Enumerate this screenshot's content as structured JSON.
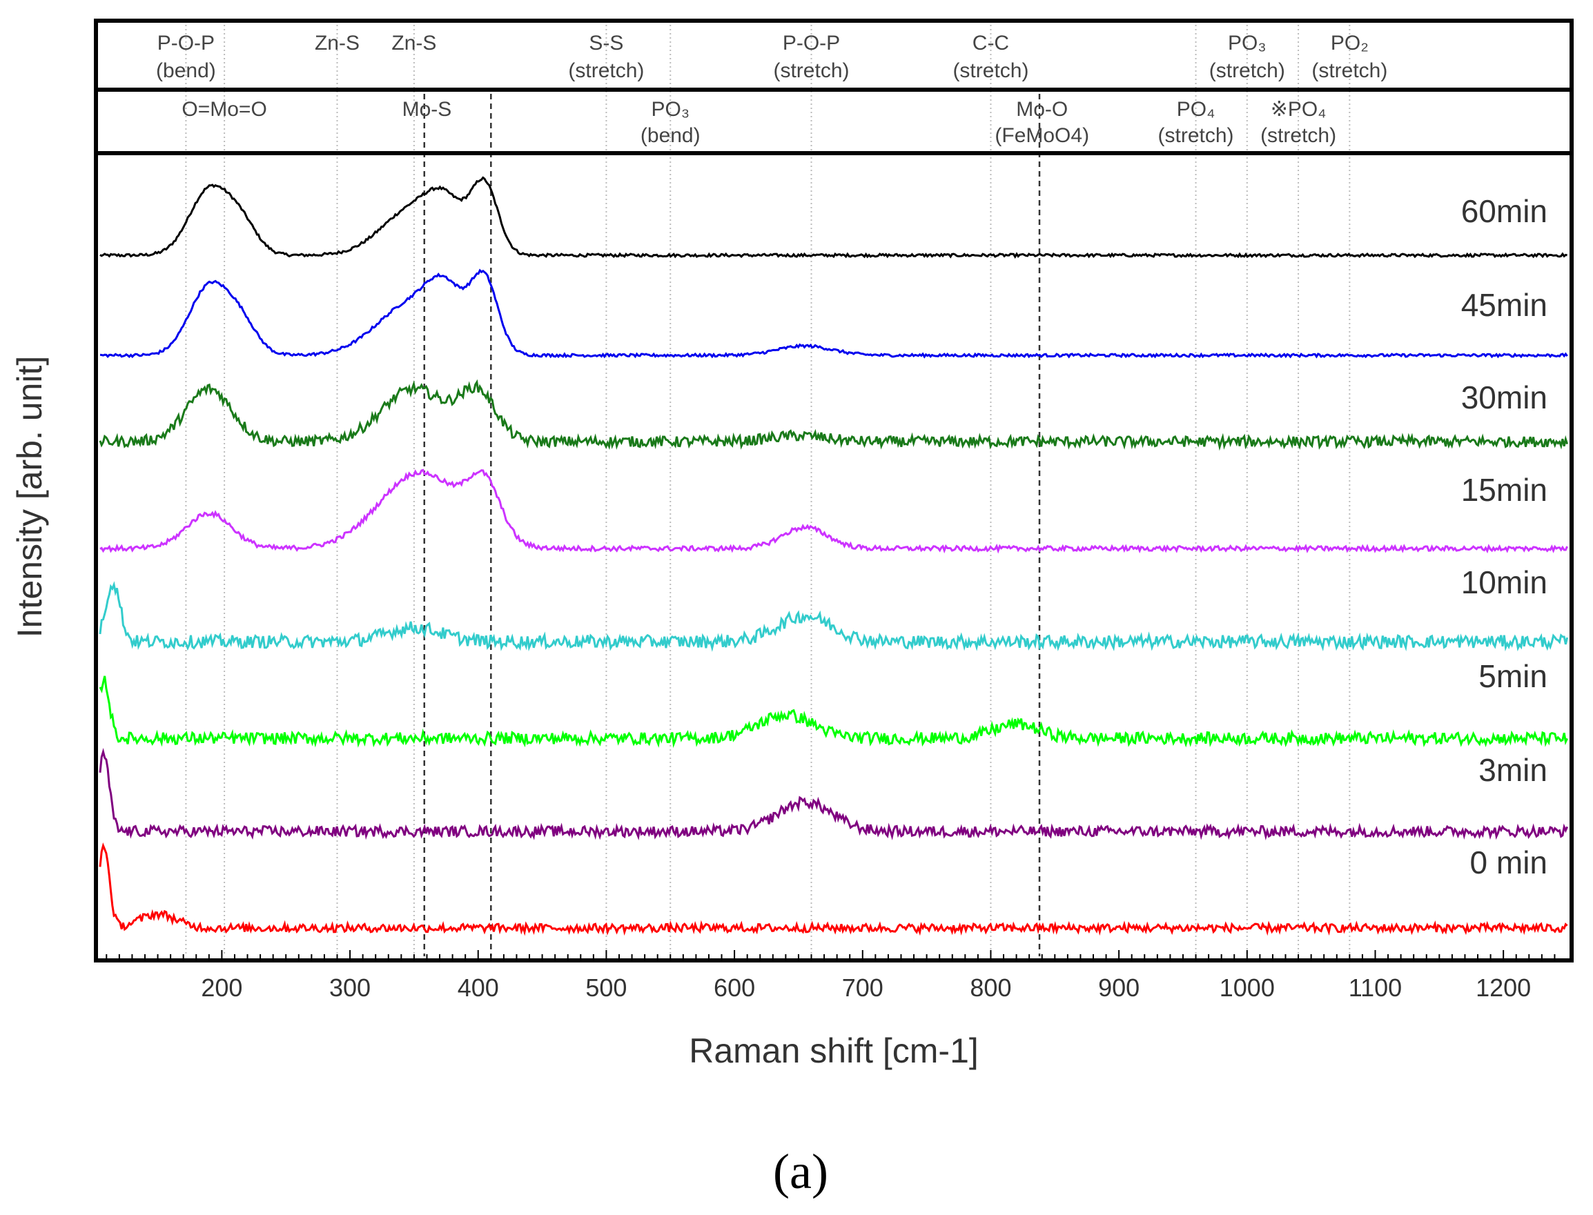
{
  "chart_data": {
    "type": "line",
    "title": "",
    "xlabel": "Raman shift [cm-1]",
    "ylabel": "Intensity [arb. unit]",
    "xlim": [
      105,
      1250
    ],
    "x_ticks": [
      200,
      300,
      400,
      500,
      600,
      700,
      800,
      900,
      1000,
      1100,
      1200
    ],
    "grid": false,
    "legend": "right-inline",
    "panel_label": "(a)",
    "series": [
      {
        "name": "60min",
        "color": "#000000",
        "noise": 0.012,
        "peaks": [
          [
            190,
            0.55,
            22
          ],
          [
            215,
            0.25,
            18
          ],
          [
            350,
            0.4,
            35
          ],
          [
            375,
            0.3,
            20
          ],
          [
            405,
            0.58,
            15
          ]
        ]
      },
      {
        "name": "45min",
        "color": "#0000ee",
        "noise": 0.012,
        "peaks": [
          [
            190,
            0.58,
            22
          ],
          [
            215,
            0.25,
            18
          ],
          [
            350,
            0.45,
            40
          ],
          [
            375,
            0.35,
            20
          ],
          [
            405,
            0.6,
            15
          ],
          [
            655,
            0.08,
            30
          ]
        ]
      },
      {
        "name": "30min",
        "color": "#1a7a1a",
        "noise": 0.045,
        "peaks": [
          [
            190,
            0.45,
            25
          ],
          [
            350,
            0.45,
            35
          ],
          [
            400,
            0.4,
            20
          ],
          [
            650,
            0.05,
            30
          ]
        ]
      },
      {
        "name": "15min",
        "color": "#cc33ff",
        "noise": 0.02,
        "peaks": [
          [
            190,
            0.3,
            25
          ],
          [
            355,
            0.65,
            45
          ],
          [
            405,
            0.45,
            18
          ],
          [
            655,
            0.18,
            25
          ]
        ]
      },
      {
        "name": "10min",
        "color": "#33cccc",
        "noise": 0.055,
        "peaks": [
          [
            115,
            0.5,
            8
          ],
          [
            350,
            0.12,
            30
          ],
          [
            655,
            0.22,
            30
          ]
        ]
      },
      {
        "name": "5min",
        "color": "#00ff00",
        "noise": 0.05,
        "peaks": [
          [
            108,
            0.5,
            6
          ],
          [
            640,
            0.2,
            30
          ],
          [
            820,
            0.12,
            25
          ]
        ]
      },
      {
        "name": "3min",
        "color": "#800080",
        "noise": 0.045,
        "peaks": [
          [
            108,
            0.65,
            6
          ],
          [
            655,
            0.25,
            30
          ]
        ]
      },
      {
        "name": "0 min",
        "color": "#ff0000",
        "noise": 0.035,
        "peaks": [
          [
            108,
            0.7,
            6
          ],
          [
            150,
            0.12,
            20
          ]
        ]
      }
    ],
    "assignments_top": [
      {
        "label": "P-O-P",
        "sub": "(bend)",
        "x": 172
      },
      {
        "label": "Zn-S",
        "sub": "",
        "x": 290
      },
      {
        "label": "Zn-S",
        "sub": "",
        "x": 350
      },
      {
        "label": "S-S",
        "sub": "(stretch)",
        "x": 500
      },
      {
        "label": "P-O-P",
        "sub": "(stretch)",
        "x": 660
      },
      {
        "label": "C-C",
        "sub": "(stretch)",
        "x": 800
      },
      {
        "label": "PO₃",
        "sub": "(stretch)",
        "x": 1000
      },
      {
        "label": "PO₂",
        "sub": "(stretch)",
        "x": 1080
      }
    ],
    "assignments_bottom": [
      {
        "label": "O=Mo=O",
        "sub": "",
        "x": 202
      },
      {
        "label": "Mo-S",
        "sub": "",
        "x": 360
      },
      {
        "label": "PO₃",
        "sub": "(bend)",
        "x": 550
      },
      {
        "label": "Mo-O",
        "sub": "(FeMoO4)",
        "x": 840
      },
      {
        "label": "PO₄",
        "sub": "(stretch)",
        "x": 960
      },
      {
        "label": "※PO₄",
        "sub": "(stretch)",
        "x": 1040
      }
    ],
    "dashed_lines": [
      358,
      410,
      838
    ],
    "dotted_lines": [
      172,
      202,
      290,
      350,
      500,
      550,
      660,
      800,
      960,
      1000,
      1040,
      1080
    ]
  }
}
